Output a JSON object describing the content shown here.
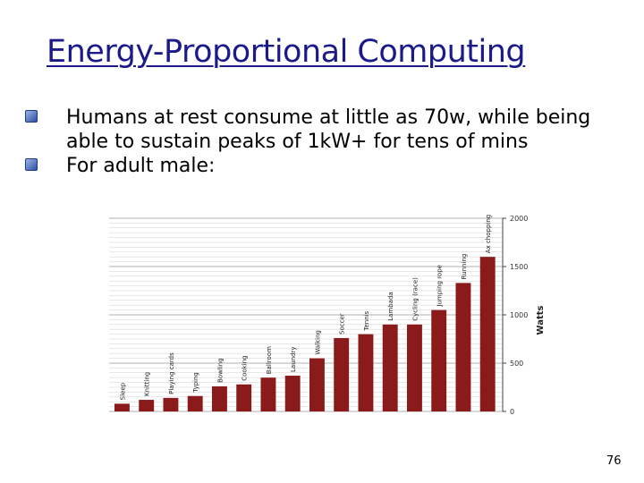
{
  "slide": {
    "title": "Energy-Proportional Computing",
    "bullets": [
      "Humans at rest consume at little as 70w, while being able to sustain peaks of 1kW+ for tens of mins",
      "For adult male:"
    ],
    "page_number": "76"
  },
  "colors": {
    "title": "#1a1a8a",
    "bar": "#8b1a1a",
    "bullet": "#2a4ea0"
  },
  "chart_data": {
    "type": "bar",
    "categories": [
      "Sleep",
      "Knitting",
      "Playing cards",
      "Typing",
      "Bowling",
      "Cooking",
      "Ballroom",
      "Laundry",
      "Walking",
      "Soccer",
      "Tennis",
      "Lambada",
      "Cycling (race)",
      "Jumping rope",
      "Running",
      "Ax chopping"
    ],
    "values": [
      80,
      120,
      140,
      160,
      260,
      280,
      350,
      370,
      550,
      760,
      800,
      900,
      900,
      1050,
      1330,
      1600
    ],
    "yticks": [
      0,
      500,
      1000,
      1500,
      2000
    ],
    "ylabel": "Watts",
    "ylim": [
      0,
      2000
    ],
    "grid": true
  }
}
